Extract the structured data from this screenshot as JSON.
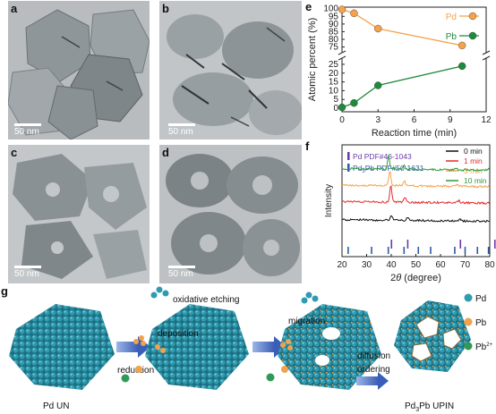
{
  "panels": {
    "a": {
      "label": "a",
      "scale": "50 nm"
    },
    "b": {
      "label": "b",
      "scale": "50 nm"
    },
    "c": {
      "label": "c",
      "scale": "50 nm"
    },
    "d": {
      "label": "d",
      "scale": "50 nm"
    },
    "e": {
      "label": "e"
    },
    "f": {
      "label": "f"
    },
    "g": {
      "label": "g"
    }
  },
  "chart_data": [
    {
      "type": "line",
      "panel": "e",
      "xlabel": "Reaction time (min)",
      "ylabel": "Atomic percent (%)",
      "x_ticks": [
        "0",
        "3",
        "6",
        "9",
        "12"
      ],
      "y_ticks_upper": [
        "75",
        "80",
        "85",
        "90",
        "95",
        "100"
      ],
      "y_ticks_lower": [
        "0",
        "5",
        "10",
        "15",
        "20",
        "25"
      ],
      "xlim": [
        0,
        12
      ],
      "ylim_upper": [
        73,
        101
      ],
      "ylim_lower": [
        -2,
        27
      ],
      "axis_break": true,
      "legend_position": "top-right",
      "series": [
        {
          "name": "Pd",
          "color": "#f5a24a",
          "x": [
            0,
            1,
            3,
            10
          ],
          "y": [
            99.5,
            97,
            87,
            76
          ]
        },
        {
          "name": "Pb",
          "color": "#1f8a3c",
          "x": [
            0,
            1,
            3,
            10
          ],
          "y": [
            0.5,
            3,
            13,
            24
          ]
        }
      ]
    },
    {
      "type": "line",
      "panel": "f",
      "xlabel_prefix": "2",
      "xlabel_theta": "θ",
      "xlabel_suffix": " (degree)",
      "ylabel": "Intensity",
      "x_ticks": [
        "20",
        "30",
        "40",
        "50",
        "60",
        "70",
        "80"
      ],
      "xlim": [
        20,
        80
      ],
      "references": [
        {
          "name": "Pd PDF#46-1043",
          "color": "#6a3aa8",
          "peaks": [
            40.1,
            46.7,
            68.1,
            82.1
          ]
        },
        {
          "name_prefix": "Pd",
          "name_sub": "3",
          "name_suffix": "Pb PDF#50-1631",
          "color": "#2d5aa6",
          "peaks": [
            22.5,
            32.0,
            38.8,
            45.2,
            51.0,
            56.0,
            65.8,
            70.0,
            75.0,
            79.5
          ]
        }
      ],
      "series": [
        {
          "name": "0 min",
          "color": "#111111",
          "baseline": 0.2,
          "peaks": [
            [
              40.1,
              0.06
            ],
            [
              46.7,
              0.03
            ],
            [
              68.1,
              0.02
            ]
          ]
        },
        {
          "name": "1 min",
          "color": "#e32b2b",
          "baseline": 0.42,
          "peaks": [
            [
              39.8,
              0.2
            ],
            [
              45.5,
              0.06
            ],
            [
              67.5,
              0.03
            ]
          ]
        },
        {
          "name": "3 min",
          "color": "#f5a24a",
          "baseline": 0.62,
          "peaks": [
            [
              39.4,
              0.18
            ],
            [
              45.3,
              0.06
            ],
            [
              66.9,
              0.03
            ]
          ]
        },
        {
          "name": "10 min",
          "color": "#2d9a3c",
          "baseline": 0.82,
          "peaks": [
            [
              38.9,
              0.16
            ],
            [
              45.2,
              0.05
            ],
            [
              66.5,
              0.03
            ],
            [
              79.6,
              0.02
            ]
          ]
        }
      ]
    }
  ],
  "schematic": {
    "pd_un": "Pd UN",
    "product_prefix": "Pd",
    "product_sub": "3",
    "product_suffix": "Pb UPIN",
    "oxidative_etching": "oxidative etching",
    "deposition": "deposition",
    "reduction": "reduction",
    "migration": "migration",
    "diffusion": "diffusion",
    "ordering": "ordering",
    "legend": [
      {
        "name": "Pd",
        "color": "#2f9bb1"
      },
      {
        "name": "Pb",
        "color": "#f0a24c"
      },
      {
        "name": "Pb",
        "sup": "2+",
        "color": "#2e9a57"
      }
    ]
  }
}
